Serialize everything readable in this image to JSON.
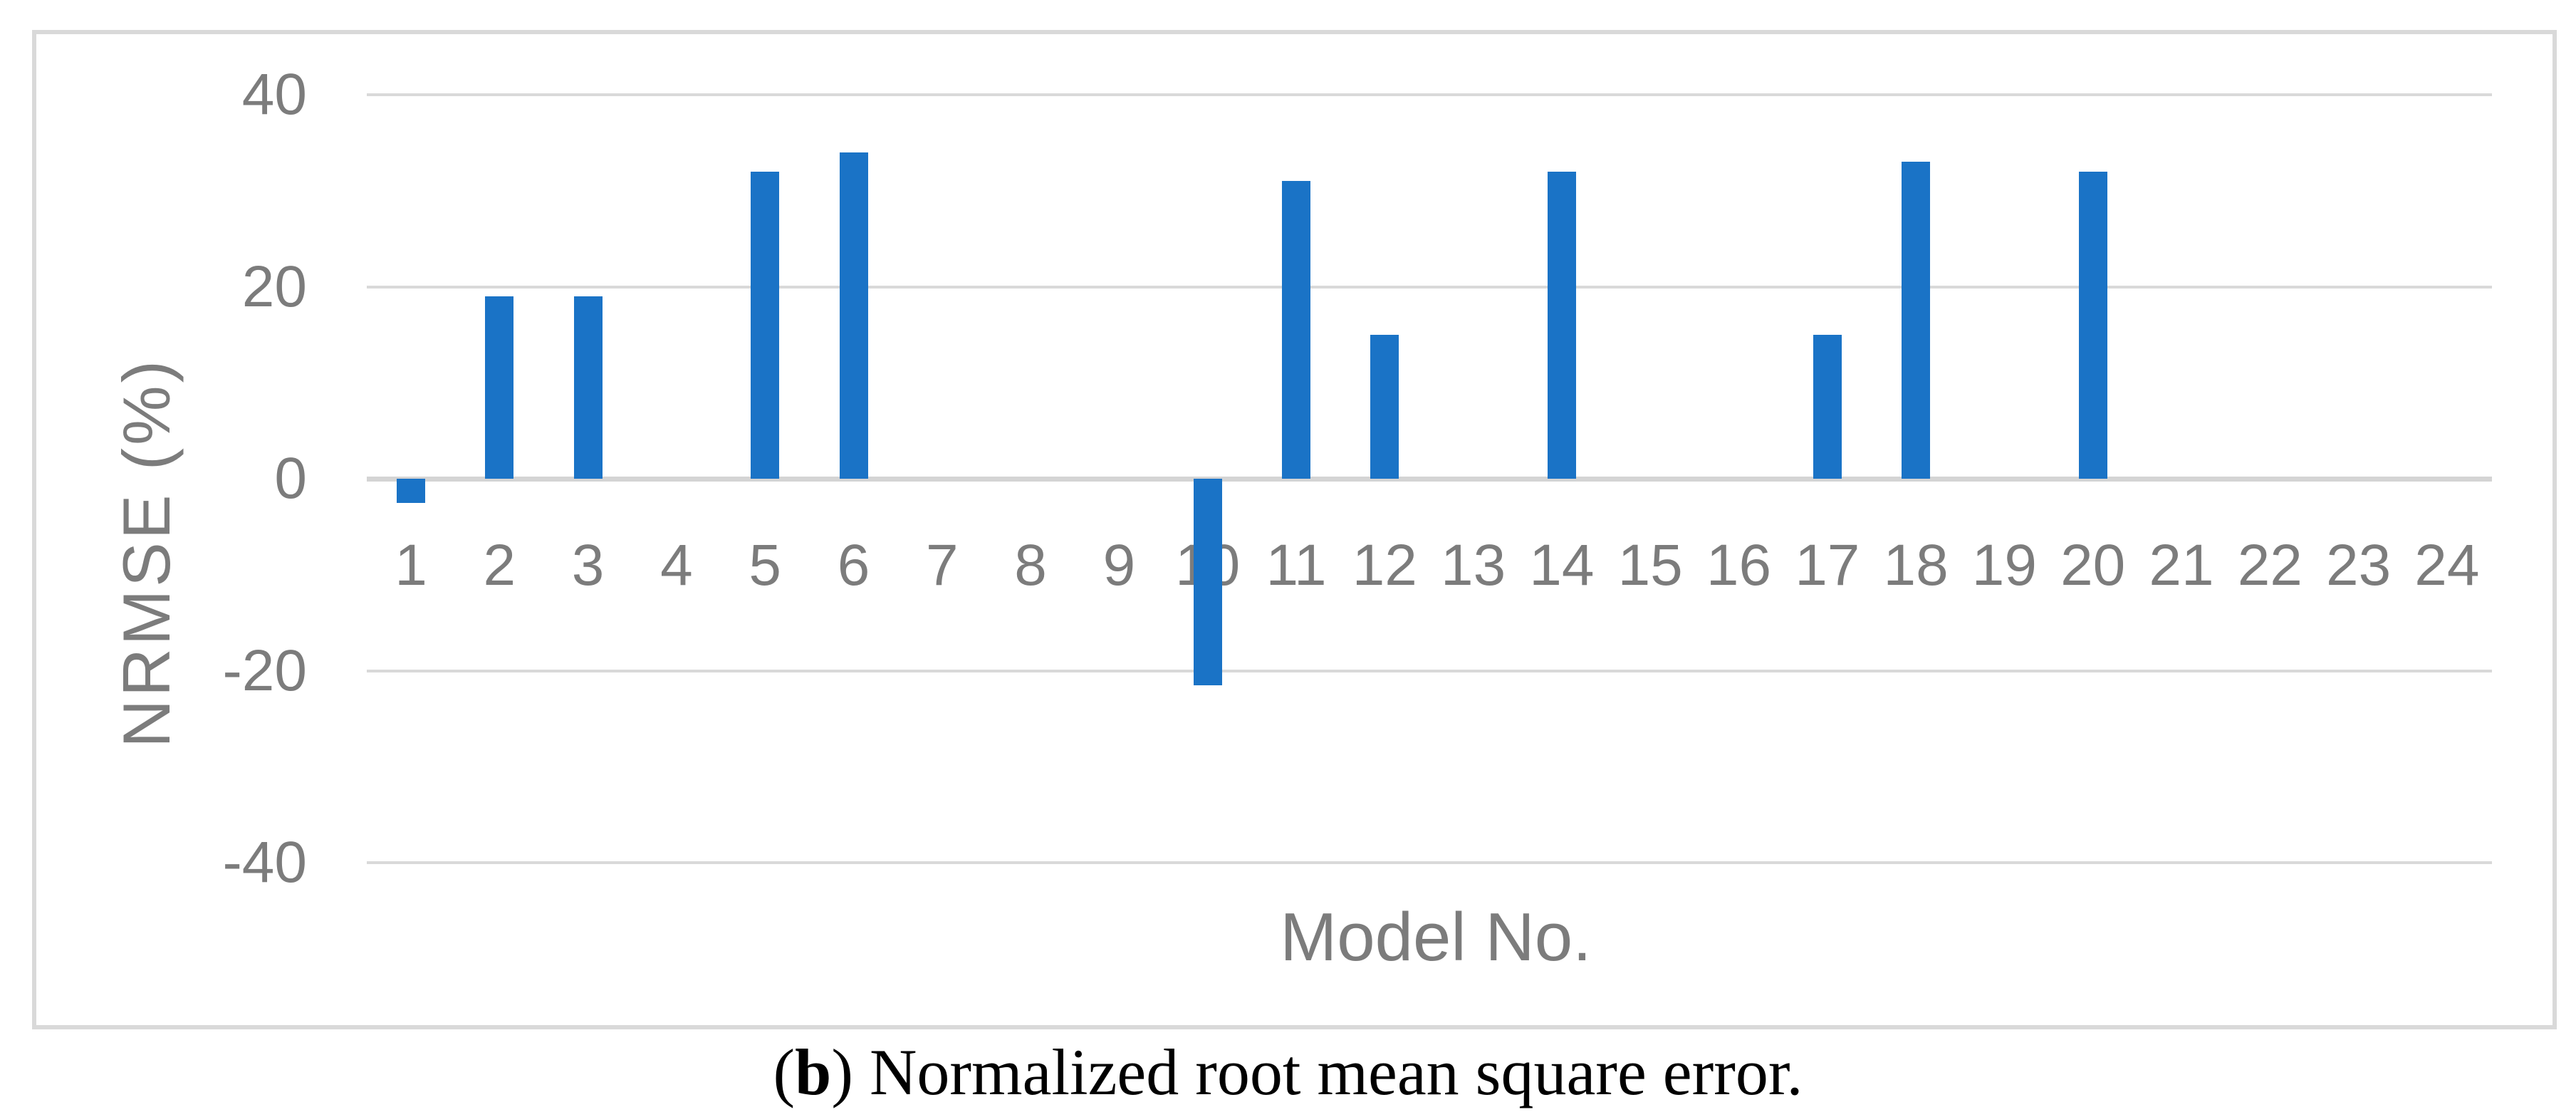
{
  "chart_data": {
    "type": "bar",
    "title": "",
    "categories": [
      1,
      2,
      3,
      4,
      5,
      6,
      7,
      8,
      9,
      10,
      11,
      12,
      13,
      14,
      15,
      16,
      17,
      18,
      19,
      20,
      21,
      22,
      23,
      24
    ],
    "values": [
      -2.5,
      19,
      19,
      0,
      32,
      34,
      0,
      0,
      0,
      -21.5,
      31,
      15,
      0,
      32,
      0,
      0,
      15,
      33,
      0,
      32,
      0,
      0,
      0,
      0
    ],
    "xlabel": "Model No.",
    "ylabel": "NRMSE  (%)",
    "ylim": [
      -40,
      40
    ],
    "yticks": [
      40,
      20,
      0,
      -20,
      -40
    ],
    "grid": true,
    "legend": "none",
    "bar_color": "#1a73c6",
    "gridline_color": "#d9d9d9",
    "axis_text_color": "#7c7c7c"
  },
  "caption": {
    "open": "(",
    "bold_label": "b",
    "rest": ") Normalized root mean square error."
  }
}
